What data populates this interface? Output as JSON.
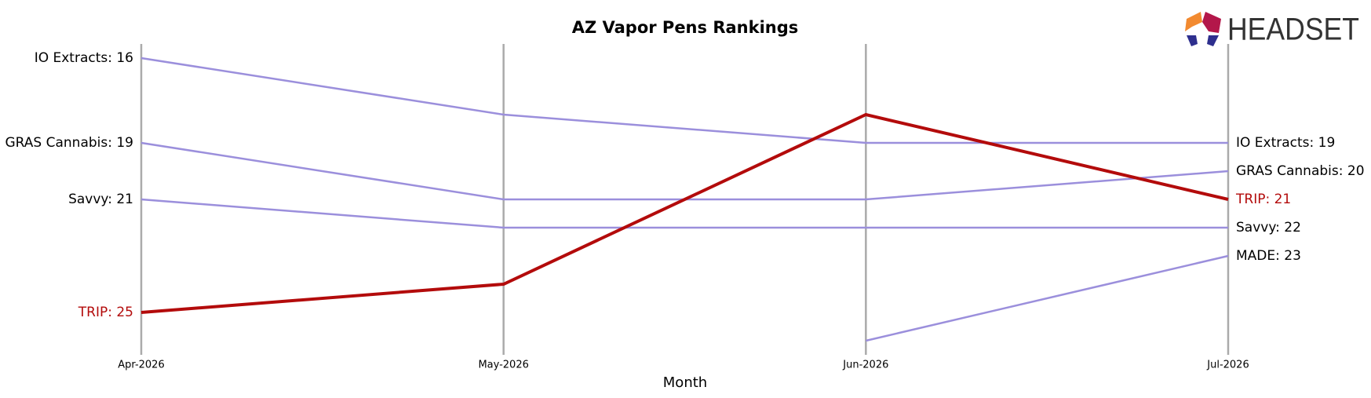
{
  "chart_data": {
    "type": "bump",
    "title": "AZ Vapor Pens Rankings",
    "xlabel": "Month",
    "logo": "HEADSET",
    "categories": [
      "Apr-2026",
      "May-2026",
      "Jun-2026",
      "Jul-2026"
    ],
    "ylim": [
      26.5,
      15.5
    ],
    "y_inverted": true,
    "series": [
      {
        "name": "IO Extracts",
        "color": "#9b8fdc",
        "values": [
          16,
          18,
          19,
          19
        ],
        "value_labels": [
          "IO Extracts: 16",
          null,
          null,
          "IO Extracts: 19"
        ]
      },
      {
        "name": "GRAS Cannabis",
        "color": "#9b8fdc",
        "values": [
          19,
          21,
          21,
          20
        ],
        "value_labels": [
          "GRAS Cannabis: 19",
          null,
          null,
          "GRAS Cannabis: 20"
        ]
      },
      {
        "name": "Savvy",
        "color": "#9b8fdc",
        "values": [
          21,
          22,
          22,
          22
        ],
        "value_labels": [
          "Savvy: 21",
          null,
          null,
          "Savvy: 22"
        ]
      },
      {
        "name": "MADE",
        "color": "#9b8fdc",
        "values": [
          null,
          null,
          26,
          23
        ],
        "value_labels": [
          null,
          null,
          null,
          "MADE: 23"
        ]
      },
      {
        "name": "TRIP",
        "color": "#b30b0b",
        "highlight": true,
        "values": [
          25,
          24,
          18,
          21
        ],
        "value_labels": [
          "TRIP: 25",
          null,
          null,
          "TRIP: 21"
        ]
      }
    ]
  }
}
